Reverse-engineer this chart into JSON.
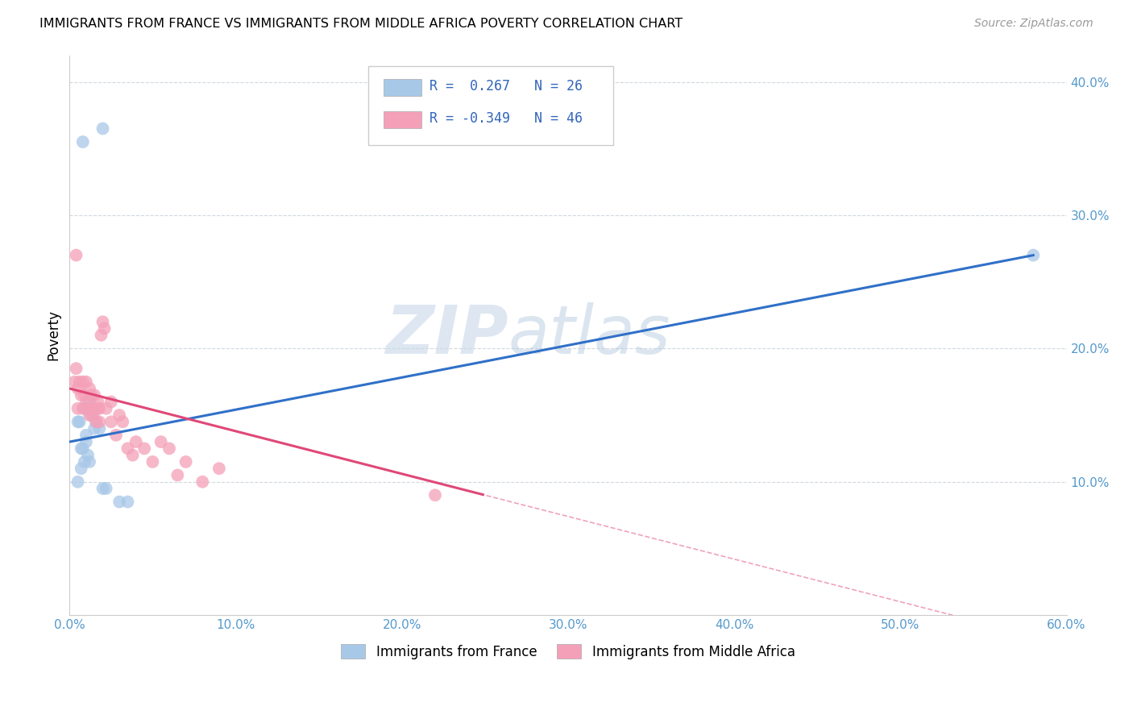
{
  "title": "IMMIGRANTS FROM FRANCE VS IMMIGRANTS FROM MIDDLE AFRICA POVERTY CORRELATION CHART",
  "source": "Source: ZipAtlas.com",
  "ylabel": "Poverty",
  "xlim": [
    0.0,
    0.6
  ],
  "ylim": [
    0.0,
    0.42
  ],
  "xtick_labels": [
    "0.0%",
    "10.0%",
    "20.0%",
    "30.0%",
    "40.0%",
    "50.0%",
    "60.0%"
  ],
  "xtick_values": [
    0.0,
    0.1,
    0.2,
    0.3,
    0.4,
    0.5,
    0.6
  ],
  "ytick_labels": [
    "10.0%",
    "20.0%",
    "30.0%",
    "40.0%"
  ],
  "ytick_values": [
    0.1,
    0.2,
    0.3,
    0.4
  ],
  "r_france": 0.267,
  "n_france": 26,
  "r_africa": -0.349,
  "n_africa": 46,
  "france_color": "#a8c8e8",
  "africa_color": "#f4a0b8",
  "france_line_color": "#3070c8",
  "africa_line_color": "#e04878",
  "watermark_zip": "ZIP",
  "watermark_atlas": "atlas",
  "legend_france": "Immigrants from France",
  "legend_africa": "Immigrants from Middle Africa",
  "france_line_x0": 0.0,
  "france_line_y0": 0.13,
  "france_line_x1": 0.58,
  "france_line_y1": 0.27,
  "africa_line_x0": 0.0,
  "africa_line_y0": 0.17,
  "africa_line_x1": 0.25,
  "africa_line_y1": 0.09,
  "france_scatter_x": [
    0.008,
    0.02,
    0.005,
    0.01,
    0.012,
    0.007,
    0.009,
    0.006,
    0.011,
    0.013,
    0.014,
    0.016,
    0.008,
    0.01,
    0.015,
    0.018,
    0.012,
    0.009,
    0.007,
    0.011,
    0.02,
    0.03,
    0.035,
    0.58,
    0.005,
    0.022
  ],
  "france_scatter_y": [
    0.355,
    0.365,
    0.145,
    0.13,
    0.16,
    0.125,
    0.155,
    0.145,
    0.155,
    0.15,
    0.155,
    0.145,
    0.125,
    0.135,
    0.14,
    0.14,
    0.115,
    0.115,
    0.11,
    0.12,
    0.095,
    0.085,
    0.085,
    0.27,
    0.1,
    0.095
  ],
  "africa_scatter_x": [
    0.003,
    0.004,
    0.005,
    0.005,
    0.006,
    0.007,
    0.008,
    0.008,
    0.009,
    0.01,
    0.01,
    0.011,
    0.012,
    0.012,
    0.013,
    0.013,
    0.014,
    0.015,
    0.015,
    0.016,
    0.017,
    0.017,
    0.018,
    0.018,
    0.019,
    0.02,
    0.021,
    0.022,
    0.025,
    0.025,
    0.028,
    0.03,
    0.032,
    0.035,
    0.038,
    0.04,
    0.045,
    0.05,
    0.055,
    0.06,
    0.065,
    0.07,
    0.08,
    0.09,
    0.22,
    0.004
  ],
  "africa_scatter_y": [
    0.175,
    0.185,
    0.17,
    0.155,
    0.175,
    0.165,
    0.175,
    0.155,
    0.165,
    0.175,
    0.16,
    0.155,
    0.17,
    0.15,
    0.155,
    0.165,
    0.15,
    0.165,
    0.155,
    0.145,
    0.155,
    0.16,
    0.145,
    0.155,
    0.21,
    0.22,
    0.215,
    0.155,
    0.16,
    0.145,
    0.135,
    0.15,
    0.145,
    0.125,
    0.12,
    0.13,
    0.125,
    0.115,
    0.13,
    0.125,
    0.105,
    0.115,
    0.1,
    0.11,
    0.09,
    0.27
  ]
}
